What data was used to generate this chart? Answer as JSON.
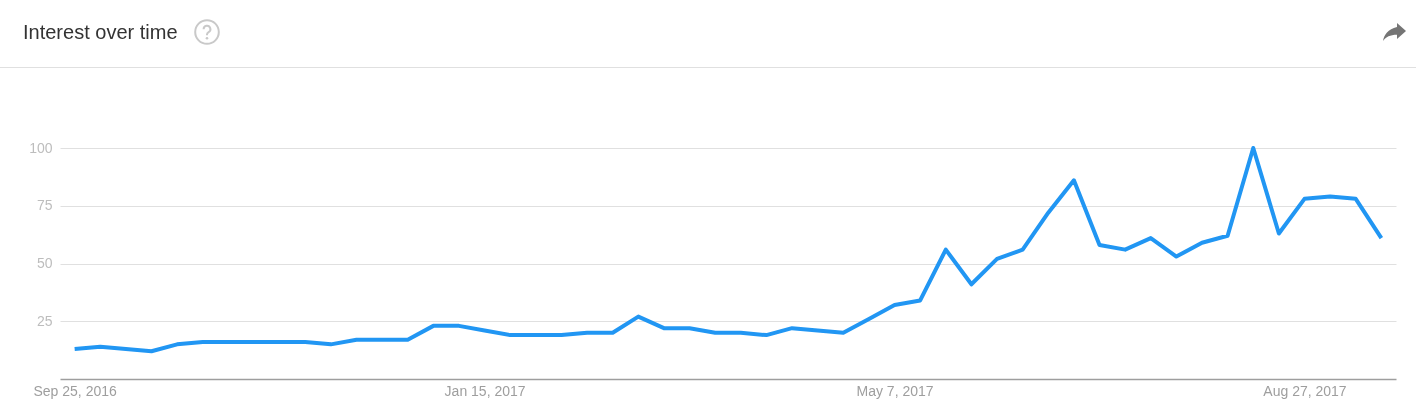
{
  "chart_data": {
    "type": "line",
    "title": "Interest over time",
    "x": [
      "2016-09-25",
      "2016-10-02",
      "2016-10-09",
      "2016-10-16",
      "2016-10-23",
      "2016-10-30",
      "2016-11-06",
      "2016-11-13",
      "2016-11-20",
      "2016-11-27",
      "2016-12-04",
      "2016-12-11",
      "2016-12-18",
      "2016-12-25",
      "2017-01-01",
      "2017-01-08",
      "2017-01-15",
      "2017-01-22",
      "2017-01-29",
      "2017-02-05",
      "2017-02-12",
      "2017-02-19",
      "2017-02-26",
      "2017-03-05",
      "2017-03-12",
      "2017-03-19",
      "2017-03-26",
      "2017-04-02",
      "2017-04-09",
      "2017-04-16",
      "2017-04-23",
      "2017-04-30",
      "2017-05-07",
      "2017-05-14",
      "2017-05-21",
      "2017-05-28",
      "2017-06-04",
      "2017-06-11",
      "2017-06-18",
      "2017-06-25",
      "2017-07-02",
      "2017-07-09",
      "2017-07-16",
      "2017-07-23",
      "2017-07-30",
      "2017-08-06",
      "2017-08-13",
      "2017-08-20",
      "2017-08-27",
      "2017-09-03",
      "2017-09-10",
      "2017-09-17"
    ],
    "series": [
      {
        "color": "#2196f3",
        "values": [
          13,
          14,
          13,
          12,
          15,
          16,
          16,
          16,
          16,
          16,
          15,
          17,
          17,
          17,
          23,
          23,
          21,
          19,
          19,
          19,
          20,
          20,
          27,
          22,
          22,
          20,
          20,
          19,
          22,
          21,
          20,
          26,
          32,
          34,
          56,
          41,
          52,
          56,
          72,
          86,
          58,
          56,
          61,
          53,
          59,
          62,
          100,
          63,
          78,
          79,
          78,
          61
        ]
      }
    ],
    "xlim": [
      "2016-09-21",
      "2017-09-21"
    ],
    "xticks": [
      {
        "value": "2016-09-25",
        "label": "Sep 25, 2016"
      },
      {
        "value": "2017-01-15",
        "label": "Jan 15, 2017"
      },
      {
        "value": "2017-05-07",
        "label": "May 7, 2017"
      },
      {
        "value": "2017-08-27",
        "label": "Aug 27, 2017"
      }
    ],
    "ylim": [
      0,
      100
    ],
    "yticks": [
      25,
      50,
      75,
      100
    ],
    "grid": "y"
  }
}
